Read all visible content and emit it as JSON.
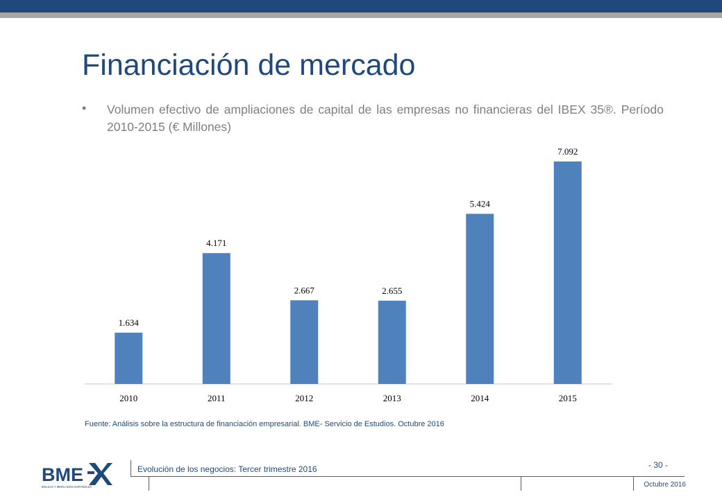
{
  "slide": {
    "title": "Financiación de mercado",
    "bullet": "Volumen efectivo de ampliaciones de capital de las empresas no financieras del IBEX 35®. Período 2010-2015 (€ Millones)",
    "source": "Fuente: Análisis sobre la estructura de financiación empresarial. BME- Servicio de Estudios. Octubre 2016"
  },
  "footer": {
    "logo_text": "BME",
    "logo_tagline": "BOLSAS Y MERCADOS ESPAÑOLES",
    "caption": "Evolución de los negocios: Tercer trimestre 2016",
    "page": "- 30 -",
    "date": "Octubre 2016"
  },
  "colors": {
    "brand": "#1f497d",
    "bar": "#4f81bd",
    "text_gray": "#7f7f7f"
  },
  "chart_data": {
    "type": "bar",
    "categories": [
      "2010",
      "2011",
      "2012",
      "2013",
      "2014",
      "2015"
    ],
    "values": [
      1634,
      4171,
      2667,
      2655,
      5424,
      7092
    ],
    "data_labels": [
      "1.634",
      "4.171",
      "2.667",
      "2.655",
      "5.424",
      "7.092"
    ],
    "ylim": [
      0,
      8000
    ],
    "grid": false,
    "legend": "none"
  }
}
